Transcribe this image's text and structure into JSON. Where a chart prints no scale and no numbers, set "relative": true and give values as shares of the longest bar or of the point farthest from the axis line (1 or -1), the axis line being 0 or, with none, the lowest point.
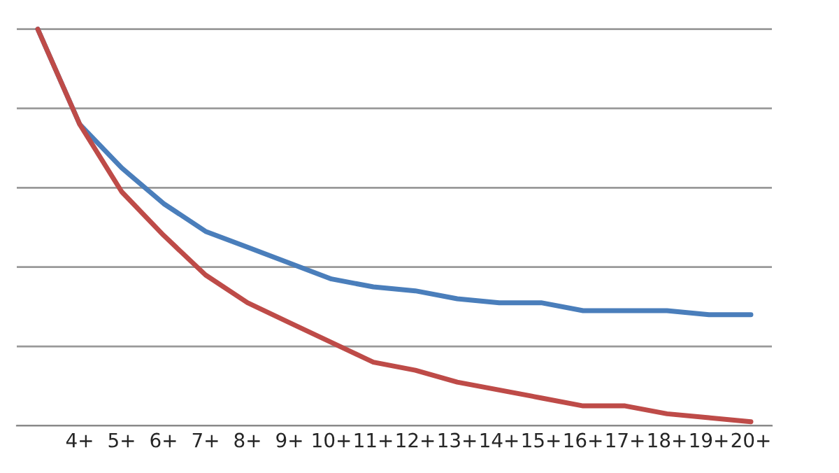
{
  "chart_data": {
    "type": "line",
    "relative": true,
    "grid": "y",
    "legend": false,
    "categories": [
      null,
      "4+",
      "5+",
      "6+",
      "7+",
      "8+",
      "9+",
      "10+",
      "11+",
      "12+",
      "13+",
      "14+",
      "15+",
      "16+",
      "17+",
      "18+",
      "19+",
      "20+"
    ],
    "series": [
      {
        "color": "#4a7ebb",
        "values": [
          1.0,
          0.76,
          0.65,
          0.56,
          0.49,
          0.45,
          0.41,
          0.37,
          0.35,
          0.34,
          0.32,
          0.31,
          0.31,
          0.29,
          0.29,
          0.29,
          0.28,
          0.28
        ]
      },
      {
        "color": "#be4b48",
        "values": [
          1.0,
          0.76,
          0.59,
          0.48,
          0.38,
          0.31,
          0.26,
          0.21,
          0.16,
          0.14,
          0.11,
          0.09,
          0.07,
          0.05,
          0.05,
          0.03,
          0.02,
          0.01
        ]
      }
    ]
  }
}
